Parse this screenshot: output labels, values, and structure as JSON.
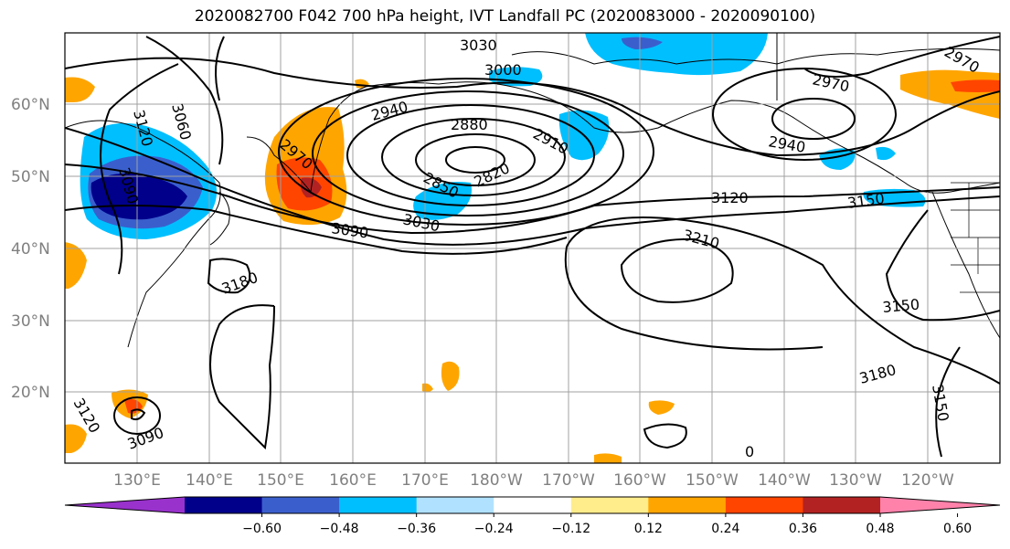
{
  "title": "2020082700 F042 700 hPa height, IVT Landfall PC (2020083000 - 2020090100)",
  "lat_labels": [
    "60°N",
    "50°N",
    "40°N",
    "30°N",
    "20°N"
  ],
  "lon_labels": [
    "130°E",
    "140°E",
    "150°E",
    "160°E",
    "170°E",
    "180°W",
    "170°W",
    "160°W",
    "150°W",
    "140°W",
    "130°W",
    "120°W"
  ],
  "colorbar": {
    "ticks": [
      "−0.60",
      "−0.48",
      "−0.36",
      "−0.24",
      "−0.12",
      "0.12",
      "0.24",
      "0.36",
      "0.48",
      "0.60"
    ],
    "colors": [
      "#9932cc",
      "#00008b",
      "#3a5fcd",
      "#00bfff",
      "#b0e2ff",
      "#ffffff",
      "#ffec8b",
      "#ffa500",
      "#ff4500",
      "#b22222",
      "#ff82ab"
    ]
  },
  "contour_labels": [
    "3030",
    "3000",
    "2970",
    "2940",
    "2880",
    "2910",
    "2820",
    "2850",
    "3030",
    "3090",
    "3120",
    "3150",
    "3210",
    "3180",
    "3150",
    "3180",
    "3150",
    "3090",
    "3060",
    "3120",
    "3090",
    "2970",
    "2940",
    "2970",
    "3120",
    "0"
  ]
}
